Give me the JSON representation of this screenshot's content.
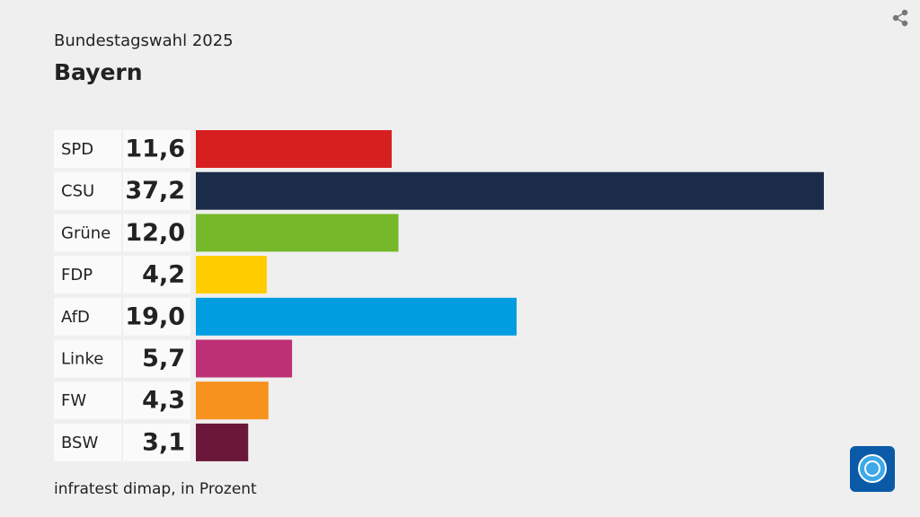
{
  "chart_data": {
    "type": "bar",
    "orientation": "horizontal",
    "subtitle": "Bundestagswahl 2025",
    "title": "Bayern",
    "categories": [
      "SPD",
      "CSU",
      "Grüne",
      "FDP",
      "AfD",
      "Linke",
      "FW",
      "BSW"
    ],
    "values": [
      11.6,
      37.2,
      12.0,
      4.2,
      19.0,
      5.7,
      4.3,
      3.1
    ],
    "value_labels": [
      "11,6",
      "37,2",
      "12,0",
      "4,2",
      "19,0",
      "5,7",
      "4,3",
      "3,1"
    ],
    "colors": [
      "#d71f1f",
      "#1b2c4a",
      "#76b82a",
      "#ffcc00",
      "#009ee0",
      "#be3075",
      "#f7921e",
      "#6b1739"
    ],
    "source": "infratest dimap, in Prozent"
  }
}
